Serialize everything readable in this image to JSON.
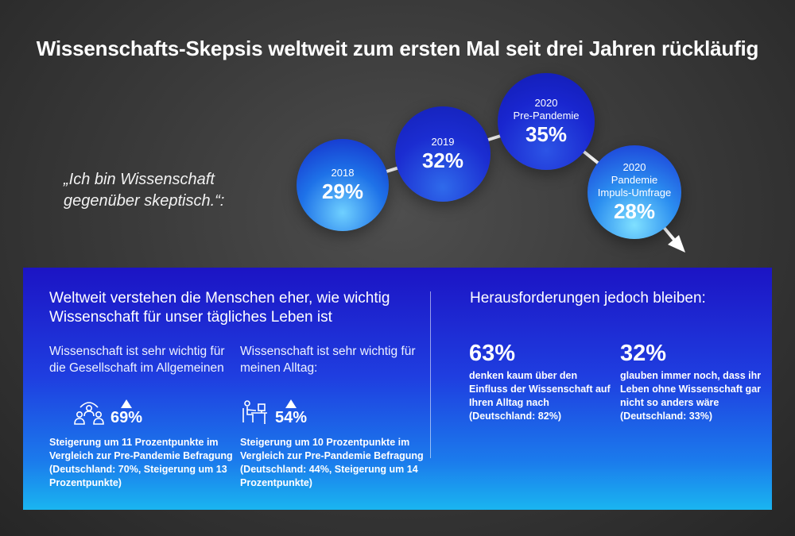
{
  "title": "Wissenschafts-Skepsis weltweit zum ersten Mal seit drei Jahren rückläufig",
  "quote": "„Ich bin Wissenschaft gegenüber skeptisch.“:",
  "timeline": [
    {
      "label": "2018",
      "value": "29%"
    },
    {
      "label": "2019",
      "value": "32%"
    },
    {
      "label": "2020",
      "label2": "Pre-Pandemie",
      "value": "35%"
    },
    {
      "label": "2020",
      "label2": "Pandemie",
      "label3": "Impuls-Umfrage",
      "value": "28%"
    }
  ],
  "left_section": {
    "heading": "Weltweit verstehen die Menschen eher, wie wichtig Wissenschaft für unser tägliches Leben ist",
    "items": [
      {
        "subheading": "Wissenschaft ist sehr wichtig für die Gesellschaft im Allgemeinen",
        "icon": "society-people-icon",
        "value": "69%",
        "note": "Steigerung um 11 Prozentpunkte im Vergleich zur Pre-Pandemie Befragung (Deutschland: 70%, Steigerung um 13 Prozentpunkte)"
      },
      {
        "subheading": "Wissenschaft ist sehr wichtig für meinen Alltag:",
        "icon": "person-at-desk-icon",
        "value": "54%",
        "note": "Steigerung um 10 Prozentpunkte im Vergleich zur Pre-Pandemie Befragung (Deutschland: 44%, Steigerung um 14 Prozentpunkte)"
      }
    ]
  },
  "right_section": {
    "heading": "Herausforderungen jedoch bleiben:",
    "items": [
      {
        "value": "63%",
        "text": "denken kaum über den Einfluss der Wissenschaft auf Ihren Alltag nach (Deutschland: 82%)"
      },
      {
        "value": "32%",
        "text": "glauben immer noch, dass ihr Leben ohne Wissenschaft gar nicht so anders wäre (Deutschland: 33%)"
      }
    ]
  },
  "colors": {
    "background": "#3b3b3b",
    "panel_top": "#1c14c4",
    "panel_bottom": "#1ab5f0",
    "bubble_dark": "#1926cf",
    "bubble_light": "#6fd0ff"
  }
}
